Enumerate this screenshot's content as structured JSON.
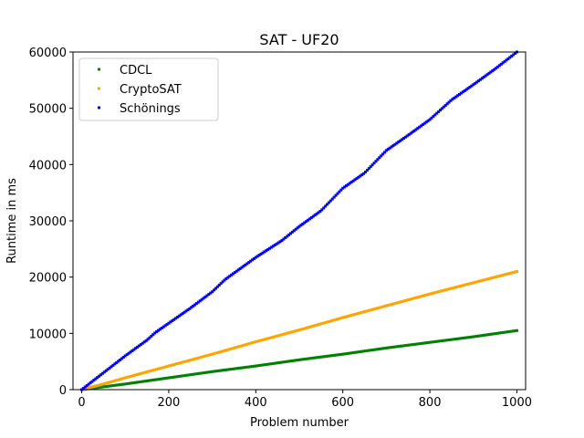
{
  "chart_data": {
    "type": "scatter",
    "title": "SAT - UF20",
    "xlabel": "Problem number",
    "ylabel": "Runtime in ms",
    "xlim": [
      -20,
      1020
    ],
    "ylim": [
      0,
      60000
    ],
    "xticks": [
      0,
      200,
      400,
      600,
      800,
      1000
    ],
    "yticks": [
      0,
      10000,
      20000,
      30000,
      40000,
      50000,
      60000
    ],
    "legend_position": "top-left",
    "grid": false,
    "series": [
      {
        "name": "CDCL",
        "color": "#008000",
        "x": [
          0,
          50,
          100,
          200,
          300,
          400,
          500,
          600,
          700,
          800,
          900,
          1000
        ],
        "y": [
          0,
          500,
          1000,
          2100,
          3200,
          4200,
          5300,
          6300,
          7400,
          8400,
          9400,
          10500
        ]
      },
      {
        "name": "CryptoSAT",
        "color": "#ffa500",
        "x": [
          0,
          50,
          100,
          200,
          300,
          400,
          500,
          600,
          700,
          800,
          900,
          1000
        ],
        "y": [
          0,
          1000,
          2100,
          4200,
          6300,
          8500,
          10600,
          12800,
          14900,
          17000,
          19000,
          21000
        ]
      },
      {
        "name": "Schönings",
        "color": "#0000ff",
        "x": [
          0,
          50,
          100,
          150,
          170,
          200,
          250,
          300,
          330,
          400,
          460,
          500,
          550,
          600,
          650,
          700,
          750,
          800,
          850,
          900,
          950,
          1000
        ],
        "y": [
          0,
          3000,
          6000,
          8800,
          10200,
          11800,
          14500,
          17400,
          19600,
          23500,
          26500,
          29000,
          31800,
          35800,
          38500,
          42500,
          45200,
          48000,
          51500,
          54200,
          57000,
          60000
        ]
      }
    ]
  }
}
